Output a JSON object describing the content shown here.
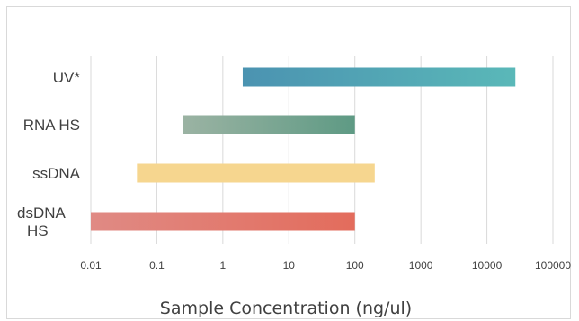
{
  "chart_data": {
    "type": "bar",
    "orientation": "horizontal",
    "x_scale": "log",
    "xlabel": "Sample Concentration (ng/ul)",
    "title": "",
    "xlim": [
      0.01,
      100000
    ],
    "x_ticks": [
      "0.01",
      "0.1",
      "1",
      "10",
      "100",
      "1000",
      "10000",
      "100000"
    ],
    "grid": "vertical",
    "legend": "none",
    "categories": [
      "UV*",
      "RNA HS",
      "ssDNA",
      "dsDNA HS"
    ],
    "ranges": [
      {
        "category": "UV*",
        "start": 2,
        "end": 27000,
        "color_start": "#4b93b1",
        "color_end": "#5ab8b8"
      },
      {
        "category": "RNA HS",
        "start": 0.25,
        "end": 100,
        "color_start": "#9bb3a3",
        "color_end": "#5e9a84"
      },
      {
        "category": "ssDNA",
        "start": 0.05,
        "end": 200,
        "color_start": "#f6d68f",
        "color_end": "#f6d68f"
      },
      {
        "category": "dsDNA HS",
        "start": 0.01,
        "end": 100,
        "color_start": "#e08a84",
        "color_end": "#e36c5c"
      }
    ]
  }
}
